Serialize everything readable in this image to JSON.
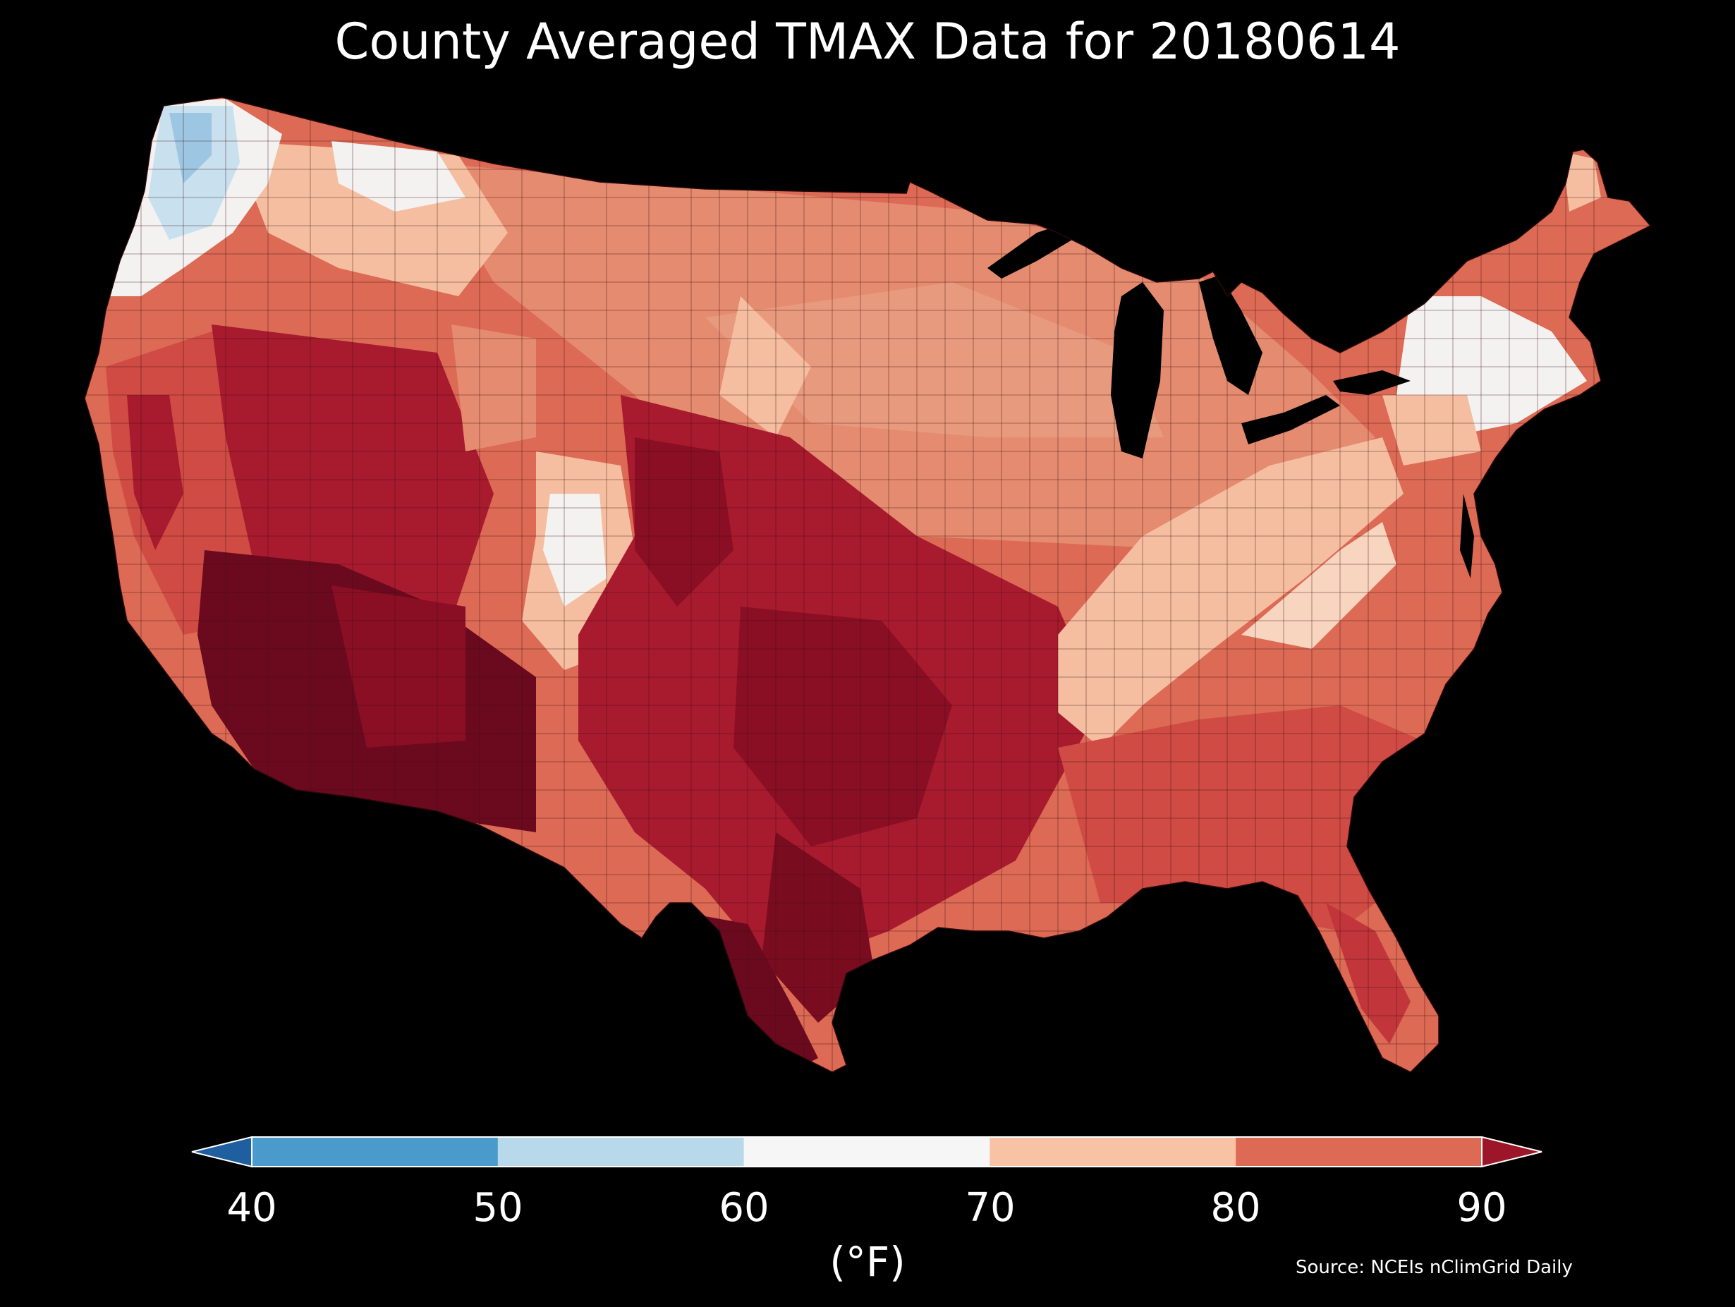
{
  "title": "County Averaged TMAX Data for 20180614",
  "colorbar": {
    "unit": "(°F)",
    "ticks": [
      "40",
      "50",
      "60",
      "70",
      "80",
      "90"
    ],
    "bins": [
      {
        "range": "<40",
        "color": "#1f5f9f"
      },
      {
        "range": "40-50",
        "color": "#4a9acb"
      },
      {
        "range": "50-60",
        "color": "#b8d9ea"
      },
      {
        "range": "60-70",
        "color": "#f6f6f6"
      },
      {
        "range": "70-80",
        "color": "#f8c2a4"
      },
      {
        "range": "80-90",
        "color": "#dc6a55"
      },
      {
        "range": ">90",
        "color": "#9c1528"
      }
    ]
  },
  "source": "Source: NCEIs nClimGrid Daily",
  "map_colors": {
    "background": "#000000",
    "county_border": "#3a1010",
    "deep_red": "#6b0a1e",
    "red": "#a81a2e",
    "red_orange": "#cf4b44",
    "salmon": "#e58b6f",
    "peach": "#f5bea0",
    "white": "#f4f2f0",
    "light_blue": "#c9e0ee",
    "blue": "#9cc6e2"
  }
}
